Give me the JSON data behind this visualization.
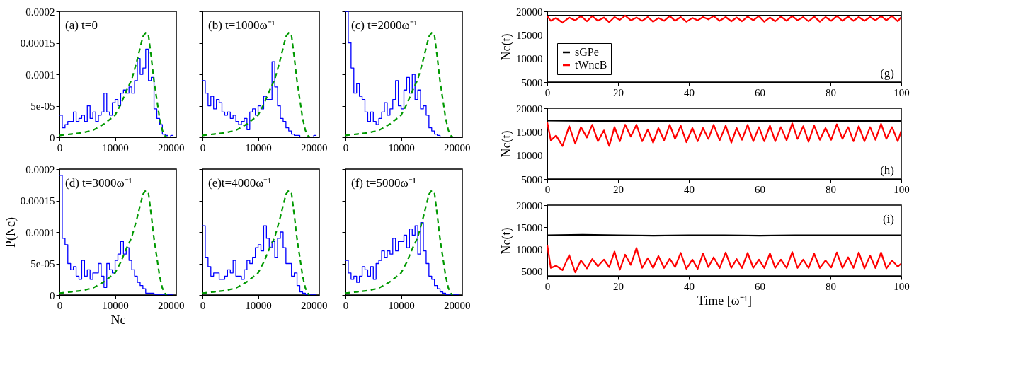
{
  "chart_data": [
    {
      "type": "histogram",
      "xlim": [
        0,
        21000
      ],
      "xticks": [
        0,
        10000,
        20000
      ],
      "ylim": [
        0,
        0.0002
      ],
      "yticks": [
        0,
        {
          "value": 5e-05,
          "label": "5e-05"
        },
        0.0001,
        0.00015,
        0.0002
      ],
      "annotations": [
        "(a) t=0"
      ],
      "series": [
        {
          "color": "#0000ff",
          "bins": [
            0,
            500,
            1000,
            1500,
            2000,
            2500,
            3000,
            3500,
            4000,
            4500,
            5000,
            5500,
            6000,
            6500,
            7000,
            7500,
            8000,
            8500,
            9000,
            9500,
            10000,
            10500,
            11000,
            11500,
            12000,
            12500,
            13000,
            13500,
            14000,
            14500,
            15000,
            15500,
            16000,
            16500,
            17000,
            17500,
            18000,
            18500,
            19000,
            19500,
            20000,
            20500
          ],
          "values": [
            3.5e-05,
            1.5e-05,
            2e-05,
            2.5e-05,
            2.5e-05,
            4e-05,
            2.5e-05,
            3e-05,
            3.5e-05,
            2.5e-05,
            5e-05,
            3e-05,
            4e-05,
            2.5e-05,
            3.5e-05,
            4e-05,
            7e-05,
            4e-05,
            3.5e-05,
            5.5e-05,
            6e-05,
            5e-05,
            7e-05,
            7.5e-05,
            7e-05,
            8e-05,
            7e-05,
            9e-05,
            0.000125,
            0.0001,
            0.00011,
            0.00014,
            9e-05,
            9.5e-05,
            4.5e-05,
            3e-05,
            2e-05,
            5e-06,
            3e-06,
            0,
            3e-06
          ]
        },
        {
          "type": "line",
          "color": "#009900",
          "line_style": "dashed",
          "x": [
            0,
            2000,
            4000,
            6000,
            8000,
            9000,
            10000,
            11000,
            12000,
            13000,
            14000,
            15000,
            15500,
            16000,
            16500,
            17000,
            17500,
            18000,
            18500,
            19000,
            19300
          ],
          "values": [
            3e-06,
            5e-06,
            7e-06,
            1.1e-05,
            2.1e-05,
            2.8e-05,
            3.5e-05,
            5.2e-05,
            7.3e-05,
            9.2e-05,
            0.000124,
            0.00016,
            0.000166,
            0.000162,
            0.000127,
            8.9e-05,
            6e-05,
            3e-05,
            1.1e-05,
            2e-06,
            0
          ]
        }
      ]
    },
    {
      "type": "histogram",
      "xlim": [
        0,
        21000
      ],
      "xticks": [
        0,
        10000,
        20000
      ],
      "ylim": [
        0,
        0.0002
      ],
      "yticks": [
        0,
        5e-05,
        0.0001,
        0.00015,
        0.0002
      ],
      "tick_labels": "x",
      "annotations": [
        "(b) t=1000ω⁻¹"
      ],
      "series": [
        {
          "color": "#0000ff",
          "bins": [
            0,
            500,
            1000,
            1500,
            2000,
            2500,
            3000,
            3500,
            4000,
            4500,
            5000,
            5500,
            6000,
            6500,
            7000,
            7500,
            8000,
            8500,
            9000,
            9500,
            10000,
            10500,
            11000,
            11500,
            12000,
            12500,
            13000,
            13500,
            14000,
            14500,
            15000,
            15500,
            16000,
            16500,
            17000,
            17500,
            18000,
            18500,
            19000,
            19500,
            20000,
            20500
          ],
          "values": [
            9e-05,
            7e-05,
            5e-05,
            6.5e-05,
            4.5e-05,
            6e-05,
            5.5e-05,
            4e-05,
            3.5e-05,
            4e-05,
            3e-05,
            3.5e-05,
            2.5e-05,
            2e-05,
            2.5e-05,
            3e-05,
            1.2e-05,
            4e-05,
            4.5e-05,
            3.5e-05,
            5e-05,
            4.5e-05,
            6.5e-05,
            6e-05,
            6e-05,
            0.00012,
            8e-05,
            5e-05,
            3e-05,
            2.5e-05,
            1.5e-05,
            1e-05,
            5e-06,
            3e-06,
            3e-06,
            0,
            0,
            0,
            0,
            0,
            3e-06
          ]
        },
        {
          "type": "line",
          "color": "#009900",
          "line_style": "dashed",
          "x": [
            0,
            2000,
            4000,
            6000,
            8000,
            9000,
            10000,
            11000,
            12000,
            13000,
            14000,
            15000,
            15500,
            16000,
            16500,
            17000,
            17500,
            18000,
            18500,
            19000,
            19300
          ],
          "values": [
            3e-06,
            5e-06,
            7e-06,
            1.1e-05,
            2.1e-05,
            2.8e-05,
            3.5e-05,
            5.2e-05,
            7.3e-05,
            9.2e-05,
            0.000124,
            0.00016,
            0.000166,
            0.000162,
            0.000127,
            8.9e-05,
            6e-05,
            3e-05,
            1.1e-05,
            2e-06,
            0
          ]
        }
      ]
    },
    {
      "type": "histogram",
      "xlim": [
        0,
        21000
      ],
      "xticks": [
        0,
        10000,
        20000
      ],
      "ylim": [
        0,
        0.0002
      ],
      "yticks": [
        0,
        5e-05,
        0.0001,
        0.00015,
        0.0002
      ],
      "tick_labels": "x",
      "annotations": [
        "(c) t=2000ω⁻¹"
      ],
      "series": [
        {
          "color": "#0000ff",
          "bins": [
            0,
            500,
            1000,
            1500,
            2000,
            2500,
            3000,
            3500,
            4000,
            4500,
            5000,
            5500,
            6000,
            6500,
            7000,
            7500,
            8000,
            8500,
            9000,
            9500,
            10000,
            10500,
            11000,
            11500,
            12000,
            12500,
            13000,
            13500,
            14000,
            14500,
            15000,
            15500,
            16000,
            16500,
            17000,
            17500,
            18000,
            18500,
            19000,
            19500,
            20000,
            20500
          ],
          "values": [
            0.0002,
            0.00015,
            0.00011,
            7e-05,
            8.5e-05,
            6.5e-05,
            6e-05,
            4e-05,
            2.5e-05,
            4e-05,
            2.5e-05,
            2e-05,
            3e-05,
            4e-05,
            5.5e-05,
            3.5e-05,
            4.5e-05,
            6e-05,
            9e-05,
            5e-05,
            4.5e-05,
            7.5e-05,
            9.5e-05,
            7e-05,
            0.0001,
            6e-05,
            7.5e-05,
            4.5e-05,
            5e-05,
            3.5e-05,
            1.5e-05,
            1e-05,
            5e-06,
            3e-06,
            0,
            0,
            0,
            0,
            0,
            0,
            0
          ]
        },
        {
          "type": "line",
          "color": "#009900",
          "line_style": "dashed",
          "x": [
            0,
            2000,
            4000,
            6000,
            8000,
            9000,
            10000,
            11000,
            12000,
            13000,
            14000,
            15000,
            15500,
            16000,
            16500,
            17000,
            17500,
            18000,
            18500,
            19000,
            19300
          ],
          "values": [
            3e-06,
            5e-06,
            7e-06,
            1.1e-05,
            2.1e-05,
            2.8e-05,
            3.5e-05,
            5.2e-05,
            7.3e-05,
            9.2e-05,
            0.000124,
            0.00016,
            0.000166,
            0.000162,
            0.000127,
            8.9e-05,
            6e-05,
            3e-05,
            1.1e-05,
            2e-06,
            0
          ]
        }
      ]
    },
    {
      "type": "histogram",
      "xlim": [
        0,
        21000
      ],
      "xticks": [
        0,
        10000,
        20000
      ],
      "ylim": [
        0,
        0.0002
      ],
      "yticks": [
        0,
        {
          "value": 5e-05,
          "label": "5e-05"
        },
        0.0001,
        0.00015,
        0.0002
      ],
      "xlabel": "Nc",
      "ylabel": "P(Nc)",
      "annotations": [
        "(d) t=3000ω⁻¹"
      ],
      "series": [
        {
          "color": "#0000ff",
          "bins": [
            0,
            500,
            1000,
            1500,
            2000,
            2500,
            3000,
            3500,
            4000,
            4500,
            5000,
            5500,
            6000,
            6500,
            7000,
            7500,
            8000,
            8500,
            9000,
            9500,
            10000,
            10500,
            11000,
            11500,
            12000,
            12500,
            13000,
            13500,
            14000,
            14500,
            15000,
            15500,
            16000,
            16500,
            17000,
            17500,
            18000,
            18500,
            19000,
            19500,
            20000,
            20500
          ],
          "values": [
            0.00019,
            9e-05,
            8e-05,
            5e-05,
            4e-05,
            4.5e-05,
            3e-05,
            2.5e-05,
            5.5e-05,
            3e-05,
            4e-05,
            2.5e-05,
            3.5e-05,
            3.5e-05,
            5e-05,
            3e-05,
            1.2e-05,
            5e-05,
            4e-05,
            3.5e-05,
            5.5e-05,
            6.5e-05,
            8.5e-05,
            6.5e-05,
            7.5e-05,
            5.5e-05,
            4e-05,
            3e-05,
            2e-05,
            1.5e-05,
            1e-05,
            3e-06,
            3e-06,
            3e-06,
            0,
            0,
            0,
            0,
            0,
            0,
            0
          ]
        },
        {
          "type": "line",
          "color": "#009900",
          "line_style": "dashed",
          "x": [
            0,
            2000,
            4000,
            6000,
            8000,
            9000,
            10000,
            11000,
            12000,
            13000,
            14000,
            15000,
            15500,
            16000,
            16500,
            17000,
            17500,
            18000,
            18500,
            19000,
            19300
          ],
          "values": [
            3e-06,
            5e-06,
            7e-06,
            1.1e-05,
            2.1e-05,
            2.8e-05,
            3.5e-05,
            5.2e-05,
            7.3e-05,
            9.2e-05,
            0.000124,
            0.00016,
            0.000166,
            0.000162,
            0.000127,
            8.9e-05,
            6e-05,
            3e-05,
            1.1e-05,
            2e-06,
            0
          ]
        }
      ]
    },
    {
      "type": "histogram",
      "xlim": [
        0,
        21000
      ],
      "xticks": [
        0,
        10000,
        20000
      ],
      "ylim": [
        0,
        0.0002
      ],
      "yticks": [
        0,
        5e-05,
        0.0001,
        0.00015,
        0.0002
      ],
      "tick_labels": "x",
      "annotations": [
        "(e)t=4000ω⁻¹"
      ],
      "series": [
        {
          "color": "#0000ff",
          "bins": [
            0,
            500,
            1000,
            1500,
            2000,
            2500,
            3000,
            3500,
            4000,
            4500,
            5000,
            5500,
            6000,
            6500,
            7000,
            7500,
            8000,
            8500,
            9000,
            9500,
            10000,
            10500,
            11000,
            11500,
            12000,
            12500,
            13000,
            13500,
            14000,
            14500,
            15000,
            15500,
            16000,
            16500,
            17000,
            17500,
            18000,
            18500,
            19000,
            19500,
            20000,
            20500
          ],
          "values": [
            0.00011,
            6e-05,
            4.5e-05,
            3e-05,
            3.5e-05,
            3.5e-05,
            2.5e-05,
            2.5e-05,
            3e-05,
            4e-05,
            3.5e-05,
            5.5e-05,
            3e-05,
            3e-05,
            2.5e-05,
            4e-05,
            5.5e-05,
            5e-05,
            6e-05,
            7.5e-05,
            8e-05,
            7e-05,
            0.00011,
            9e-05,
            7.5e-05,
            8.5e-05,
            6e-05,
            9e-05,
            0.0001,
            7.5e-05,
            5e-05,
            5e-05,
            3e-05,
            3.5e-05,
            1.5e-05,
            5e-06,
            3e-06,
            0,
            0,
            0,
            0
          ]
        },
        {
          "type": "line",
          "color": "#009900",
          "line_style": "dashed",
          "x": [
            0,
            2000,
            4000,
            6000,
            8000,
            9000,
            10000,
            11000,
            12000,
            13000,
            14000,
            15000,
            15500,
            16000,
            16500,
            17000,
            17500,
            18000,
            18500,
            19000,
            19300
          ],
          "values": [
            3e-06,
            5e-06,
            7e-06,
            1.1e-05,
            2.1e-05,
            2.8e-05,
            3.5e-05,
            5.2e-05,
            7.3e-05,
            9.2e-05,
            0.000124,
            0.00016,
            0.000166,
            0.000162,
            0.000127,
            8.9e-05,
            6e-05,
            3e-05,
            1.1e-05,
            2e-06,
            0
          ]
        }
      ]
    },
    {
      "type": "histogram",
      "xlim": [
        0,
        21000
      ],
      "xticks": [
        0,
        10000,
        20000
      ],
      "ylim": [
        0,
        0.0002
      ],
      "yticks": [
        0,
        5e-05,
        0.0001,
        0.00015,
        0.0002
      ],
      "tick_labels": "x",
      "annotations": [
        "(f) t=5000ω⁻¹"
      ],
      "series": [
        {
          "color": "#0000ff",
          "bins": [
            0,
            500,
            1000,
            1500,
            2000,
            2500,
            3000,
            3500,
            4000,
            4500,
            5000,
            5500,
            6000,
            6500,
            7000,
            7500,
            8000,
            8500,
            9000,
            9500,
            10000,
            10500,
            11000,
            11500,
            12000,
            12500,
            13000,
            13500,
            14000,
            14500,
            15000,
            15500,
            16000,
            16500,
            17000,
            17500,
            18000,
            18500,
            19000,
            19500,
            20000,
            20500
          ],
          "values": [
            5.5e-05,
            3.5e-05,
            2.5e-05,
            3e-05,
            2e-05,
            3e-05,
            4.5e-05,
            4e-05,
            3e-05,
            4.5e-05,
            2.5e-05,
            5e-05,
            5.5e-05,
            7e-05,
            6e-05,
            7e-05,
            6.5e-05,
            9e-05,
            7e-05,
            8.5e-05,
            8.5e-05,
            9.5e-05,
            7.5e-05,
            0.000105,
            9.5e-05,
            0.00011,
            6.5e-05,
            0.000115,
            7e-05,
            5e-05,
            3e-05,
            2.5e-05,
            1.5e-05,
            1e-05,
            5e-06,
            3e-06,
            0,
            0,
            0,
            0,
            0
          ]
        },
        {
          "type": "line",
          "color": "#009900",
          "line_style": "dashed",
          "x": [
            0,
            2000,
            4000,
            6000,
            8000,
            9000,
            10000,
            11000,
            12000,
            13000,
            14000,
            15000,
            15500,
            16000,
            16500,
            17000,
            17500,
            18000,
            18500,
            19000,
            19300
          ],
          "values": [
            3e-06,
            5e-06,
            7e-06,
            1.1e-05,
            2.1e-05,
            2.8e-05,
            3.5e-05,
            5.2e-05,
            7.3e-05,
            9.2e-05,
            0.000124,
            0.00016,
            0.000166,
            0.000162,
            0.000127,
            8.9e-05,
            6e-05,
            3e-05,
            1.1e-05,
            2e-06,
            0
          ]
        }
      ]
    },
    {
      "type": "line",
      "xlim": [
        0,
        100
      ],
      "xticks": [
        0,
        20,
        40,
        60,
        80,
        100
      ],
      "ylim": [
        5000,
        20000
      ],
      "yticks": [
        5000,
        10000,
        15000,
        20000
      ],
      "ylabel": "Nc(t)",
      "legend": "left",
      "annotations": [
        "(g)"
      ],
      "series": [
        {
          "name": "sGPe",
          "color": "#000000",
          "x": [
            0,
            10,
            20,
            30,
            40,
            50,
            60,
            70,
            80,
            90,
            100
          ],
          "values": [
            19100,
            19100,
            19100,
            19100,
            19100,
            19100,
            19100,
            19100,
            19100,
            19100,
            19100
          ]
        },
        {
          "name": "tWncB",
          "color": "#ff0000",
          "x": [
            0,
            1,
            2.5,
            4.3,
            6.2,
            7.9,
            9.5,
            11.2,
            12.7,
            14.3,
            16,
            17.5,
            19,
            20.5,
            22,
            23.6,
            25.2,
            26.8,
            28.4,
            29.9,
            31.4,
            33,
            34.6,
            36.1,
            37.7,
            39.3,
            41,
            42.5,
            44,
            45.5,
            47,
            48.7,
            50.4,
            52,
            53.5,
            55,
            56.6,
            58.2,
            59.8,
            61.3,
            62.9,
            64.4,
            66,
            67.6,
            69.2,
            70.7,
            72.3,
            73.8,
            75.4,
            77,
            78.6,
            80.2,
            81.8,
            83.4,
            85,
            86.5,
            88,
            89.6,
            91.2,
            92.7,
            94.3,
            95.8,
            97.4,
            99,
            100
          ],
          "values": [
            19000,
            18000,
            18600,
            17600,
            18700,
            18100,
            19000,
            17900,
            19000,
            18000,
            18700,
            17700,
            18800,
            18200,
            19100,
            18100,
            18700,
            18000,
            18800,
            17800,
            18600,
            18000,
            19000,
            18000,
            18800,
            17800,
            18600,
            18100,
            18800,
            18300,
            19000,
            18000,
            18800,
            17900,
            18700,
            17900,
            18900,
            18100,
            19000,
            17800,
            18700,
            17900,
            18900,
            18000,
            19000,
            18100,
            18800,
            17900,
            18900,
            17800,
            18800,
            18000,
            19000,
            18000,
            18900,
            18000,
            18800,
            18000,
            18800,
            18100,
            19000,
            18100,
            19000,
            17900,
            18800
          ]
        }
      ]
    },
    {
      "type": "line",
      "xlim": [
        0,
        100
      ],
      "xticks": [
        0,
        20,
        40,
        60,
        80,
        100
      ],
      "ylim": [
        5000,
        20000
      ],
      "yticks": [
        5000,
        10000,
        15000,
        20000
      ],
      "ylabel": "Nc(t)",
      "annotations": [
        "(h)"
      ],
      "series": [
        {
          "color": "#000000",
          "x": [
            0,
            10,
            20,
            30,
            40,
            50,
            60,
            70,
            80,
            90,
            100
          ],
          "values": [
            17400,
            17300,
            17300,
            17300,
            17300,
            17300,
            17300,
            17300,
            17300,
            17300,
            17300
          ]
        },
        {
          "color": "#ff0000",
          "x": [
            0,
            1,
            2.5,
            4.3,
            6.2,
            7.9,
            9.5,
            11.2,
            12.7,
            14.3,
            16,
            17.5,
            19,
            20.5,
            22,
            23.6,
            25.2,
            26.8,
            28.4,
            29.9,
            31.4,
            33,
            34.6,
            36.1,
            37.7,
            39.3,
            41,
            42.5,
            44,
            45.5,
            47,
            48.7,
            50.4,
            52,
            53.5,
            55,
            56.6,
            58.2,
            59.8,
            61.3,
            62.9,
            64.4,
            66,
            67.6,
            69.2,
            70.7,
            72.3,
            73.8,
            75.4,
            77,
            78.6,
            80.2,
            81.8,
            83.4,
            85,
            86.5,
            88,
            89.6,
            91.2,
            92.7,
            94.3,
            95.8,
            97.4,
            99,
            100
          ],
          "values": [
            17000,
            13200,
            14200,
            12000,
            16200,
            12500,
            16000,
            13800,
            16500,
            13000,
            15300,
            12000,
            16000,
            13000,
            16500,
            14000,
            16500,
            13000,
            15500,
            12700,
            15800,
            13200,
            16500,
            13500,
            16300,
            12800,
            15800,
            13000,
            15800,
            13500,
            16500,
            13200,
            16300,
            12700,
            15800,
            13300,
            16500,
            13000,
            16000,
            13000,
            16300,
            13000,
            16000,
            13200,
            16800,
            13500,
            16200,
            12900,
            16300,
            13300,
            15800,
            13300,
            16600,
            13500,
            16000,
            13000,
            16200,
            13000,
            16000,
            13300,
            16700,
            13500,
            16000,
            13000,
            15200
          ]
        }
      ]
    },
    {
      "type": "line",
      "xlim": [
        0,
        100
      ],
      "xticks": [
        0,
        20,
        40,
        60,
        80,
        100
      ],
      "ylim": [
        4000,
        20000
      ],
      "yticks": [
        5000,
        10000,
        15000,
        20000
      ],
      "xlabel": "Time [ω⁻¹]",
      "ylabel": "Nc(t)",
      "annotations": [
        "(i)"
      ],
      "series": [
        {
          "color": "#000000",
          "x": [
            0,
            10,
            20,
            30,
            40,
            50,
            60,
            70,
            80,
            90,
            100
          ],
          "values": [
            13200,
            13300,
            13200,
            13100,
            13200,
            13200,
            13100,
            13200,
            13200,
            13200,
            13200
          ]
        },
        {
          "color": "#ff0000",
          "x": [
            0,
            1,
            2.5,
            4.3,
            6.2,
            7.9,
            9.5,
            11.2,
            12.7,
            14.3,
            16,
            17.5,
            19,
            20.5,
            22,
            23.6,
            25.2,
            26.8,
            28.4,
            29.9,
            31.4,
            33,
            34.6,
            36.1,
            37.7,
            39.3,
            41,
            42.5,
            44,
            45.5,
            47,
            48.7,
            50.4,
            52,
            53.5,
            55,
            56.6,
            58.2,
            59.8,
            61.3,
            62.9,
            64.4,
            66,
            67.6,
            69.2,
            70.7,
            72.3,
            73.8,
            75.4,
            77,
            78.6,
            80.2,
            81.8,
            83.4,
            85,
            86.5,
            88,
            89.6,
            91.2,
            92.7,
            94.3,
            95.8,
            97.4,
            99,
            100
          ],
          "values": [
            11000,
            5800,
            6300,
            5300,
            8700,
            4800,
            7500,
            5700,
            7800,
            6200,
            7700,
            6000,
            9500,
            5400,
            8800,
            6500,
            10300,
            5800,
            8000,
            5800,
            8500,
            5800,
            7900,
            6000,
            9200,
            5600,
            7700,
            5600,
            9100,
            6000,
            8200,
            5800,
            9300,
            5800,
            7800,
            5800,
            9200,
            5800,
            7700,
            5800,
            9100,
            5800,
            7700,
            5800,
            9400,
            5800,
            7700,
            5800,
            9000,
            5800,
            7500,
            5900,
            9300,
            5800,
            8200,
            5800,
            9300,
            5700,
            8600,
            5800,
            9300,
            5700,
            7500,
            6100,
            6800
          ]
        }
      ]
    }
  ]
}
